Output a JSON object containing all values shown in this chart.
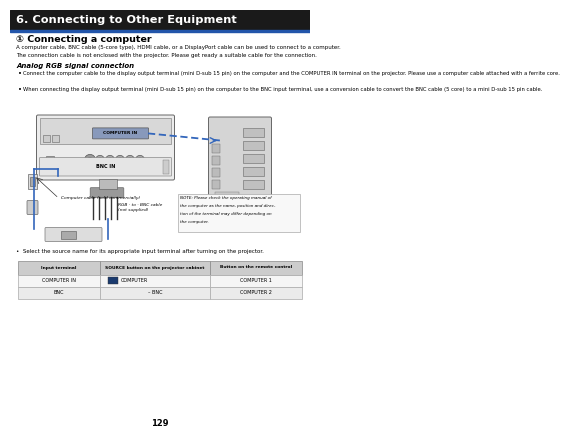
{
  "title": "6. Connecting to Other Equipment",
  "section_title": "① Connecting a computer",
  "intro_line1": "A computer cable, BNC cable (5-core type), HDMI cable, or a DisplayPort cable can be used to connect to a computer.",
  "intro_line2": "The connection cable is not enclosed with the projector. Please get ready a suitable cable for the connection.",
  "subsection_title": "Analog RGB signal connection",
  "bullet1": "Connect the computer cable to the display output terminal (mini D-sub 15 pin) on the computer and the COMPUTER IN terminal on the projector. Please use a computer cable attached with a ferrite core.",
  "bullet2": "When connecting the display output terminal (mini D-sub 15 pin) on the computer to the BNC input terminal, use a conversion cable to convert the BNC cable (5 core) to a mini D-sub 15 pin cable.",
  "note_text": "NOTE: Please check the operating manual of the computer as the name, position and direction of the terminal may differ depending on the computer.",
  "select_text": "•  Select the source name for its appropriate input terminal after turning on the projector.",
  "table_headers": [
    "Input terminal",
    "SOURCE button on the projector cabinet",
    "Button on the remote control"
  ],
  "table_rows": [
    [
      "COMPUTER IN",
      "COMPUTER",
      "COMPUTER 1"
    ],
    [
      "BNC",
      "– BNC",
      "COMPUTER 2"
    ]
  ],
  "page_number": "129",
  "bg_color": "#ffffff",
  "header_bg": "#1a1a1a",
  "header_text_color": "#ffffff",
  "blue_line_color": "#2255aa",
  "blue_connector_color": "#3366bb",
  "diagram_box_color": "#e0e0e0",
  "diagram_edge_color": "#666666"
}
